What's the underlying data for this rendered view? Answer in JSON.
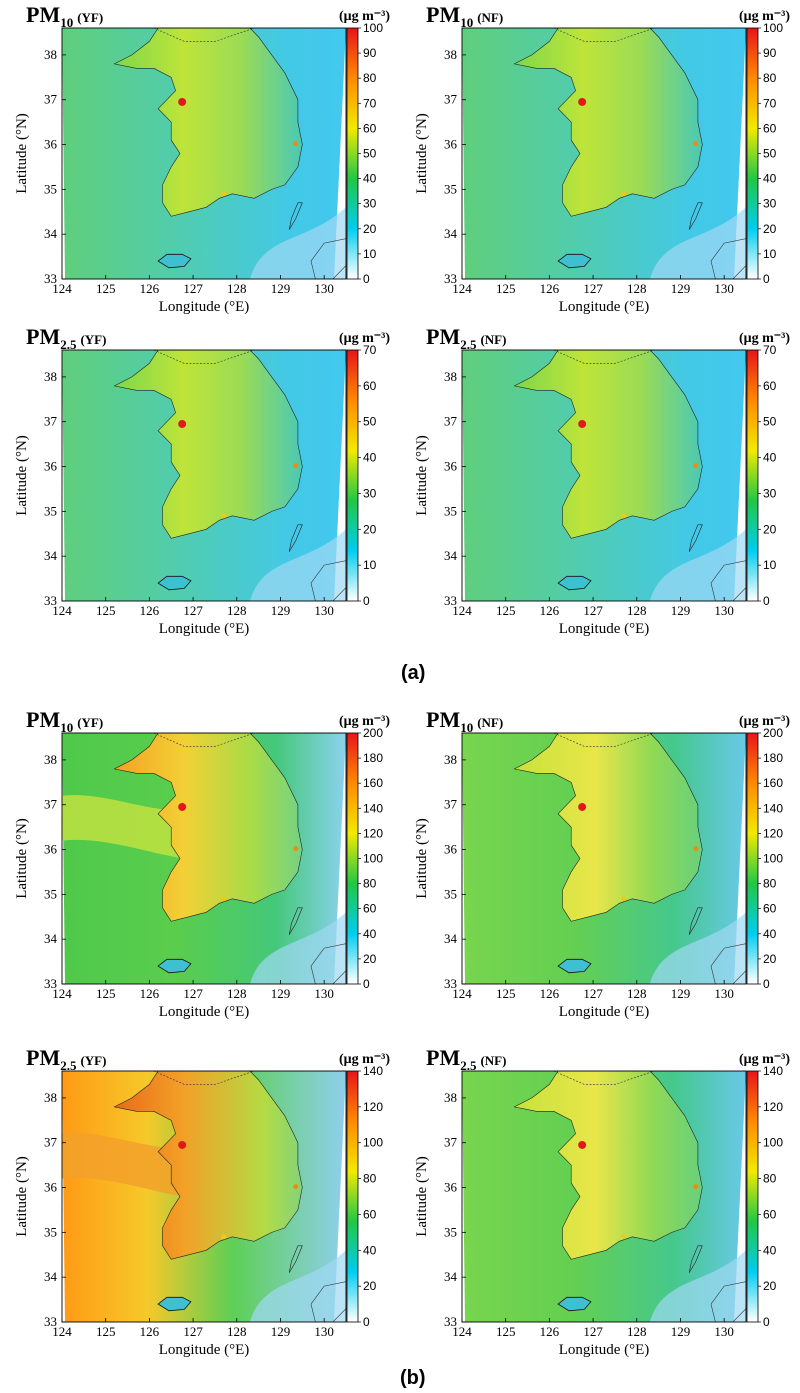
{
  "section_labels": [
    "(a)",
    "(b)"
  ],
  "colorbar_unit": "(μg m⁻³)",
  "x_axis_label": "Longitude (°E)",
  "y_axis_label": "Latitude (°N)",
  "x_ticks": [
    "124",
    "125",
    "126",
    "127",
    "128",
    "129",
    "130"
  ],
  "y_ticks": [
    "33",
    "34",
    "35",
    "36",
    "37",
    "38"
  ],
  "colors": {
    "background_low": "#43c8f0",
    "land_low": "#8fd94a",
    "sea_green": "#5fcf5a",
    "hotspot": "#e0191e",
    "colorbar": [
      "#ffffff",
      "#00cdf0",
      "#20c845",
      "#f2ea00",
      "#ff8a00",
      "#e8141b"
    ]
  },
  "panels": [
    {
      "species": "PM",
      "subscript": "10",
      "case": "(YF)",
      "section": "a",
      "cbar_ticks": [
        "0",
        "10",
        "20",
        "30",
        "40",
        "50",
        "60",
        "70",
        "80",
        "90",
        "100"
      ],
      "sea_mode": "low",
      "land_mode": "low"
    },
    {
      "species": "PM",
      "subscript": "10",
      "case": "(NF)",
      "section": "a",
      "cbar_ticks": [
        "0",
        "10",
        "20",
        "30",
        "40",
        "50",
        "60",
        "70",
        "80",
        "90",
        "100"
      ],
      "sea_mode": "low",
      "land_mode": "low"
    },
    {
      "species": "PM",
      "subscript": "2.5",
      "case": "(YF)",
      "section": "a",
      "cbar_ticks": [
        "0",
        "10",
        "20",
        "30",
        "40",
        "50",
        "60",
        "70"
      ],
      "sea_mode": "low",
      "land_mode": "low"
    },
    {
      "species": "PM",
      "subscript": "2.5",
      "case": "(NF)",
      "section": "a",
      "cbar_ticks": [
        "0",
        "10",
        "20",
        "30",
        "40",
        "50",
        "60",
        "70"
      ],
      "sea_mode": "low",
      "land_mode": "low"
    },
    {
      "species": "PM",
      "subscript": "10",
      "case": "(YF)",
      "section": "b",
      "cbar_ticks": [
        "0",
        "20",
        "40",
        "60",
        "80",
        "100",
        "120",
        "140",
        "160",
        "180",
        "200"
      ],
      "sea_mode": "plume",
      "land_mode": "high"
    },
    {
      "species": "PM",
      "subscript": "10",
      "case": "(NF)",
      "section": "b",
      "cbar_ticks": [
        "0",
        "20",
        "40",
        "60",
        "80",
        "100",
        "120",
        "140",
        "160",
        "180",
        "200"
      ],
      "sea_mode": "green",
      "land_mode": "mid"
    },
    {
      "species": "PM",
      "subscript": "2.5",
      "case": "(YF)",
      "section": "b",
      "cbar_ticks": [
        "0",
        "20",
        "40",
        "60",
        "80",
        "100",
        "120",
        "140"
      ],
      "sea_mode": "plume-strong",
      "land_mode": "veryhigh"
    },
    {
      "species": "PM",
      "subscript": "2.5",
      "case": "(NF)",
      "section": "b",
      "cbar_ticks": [
        "0",
        "20",
        "40",
        "60",
        "80",
        "100",
        "120",
        "140"
      ],
      "sea_mode": "green",
      "land_mode": "mid"
    }
  ]
}
